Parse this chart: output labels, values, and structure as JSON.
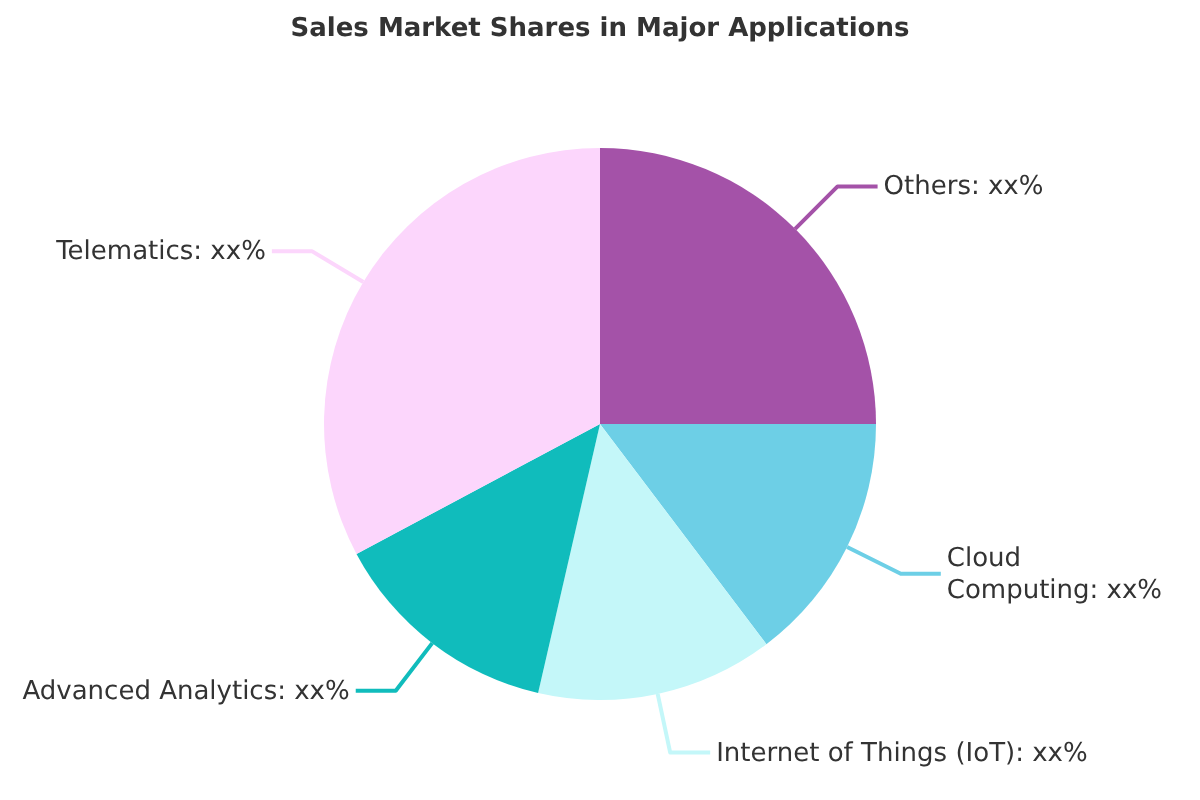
{
  "chart_data": {
    "type": "pie",
    "title": "Sales Market Shares in Major Applications",
    "categories": [
      "Others",
      "Cloud Computing",
      "Internet of Things (IoT)",
      "Advanced Analytics",
      "Telematics"
    ],
    "values": [
      25,
      14.7,
      13.9,
      13.6,
      32.8
    ],
    "colors": [
      "#a452a8",
      "#6dcfe6",
      "#c4f7f9",
      "#10bcbc",
      "#fcd6fc"
    ],
    "value_labels": [
      "xx%",
      "xx%",
      "xx%",
      "xx%",
      "xx%"
    ]
  }
}
